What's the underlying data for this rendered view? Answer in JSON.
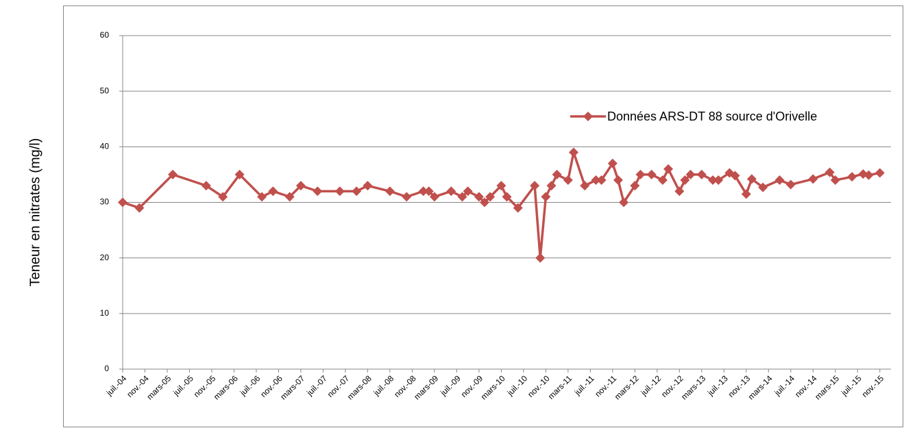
{
  "chart_data": {
    "type": "line",
    "y_label": "Teneur en nitrates (mg/l)",
    "x": [
      "2004-07",
      "2004-10",
      "2005-04",
      "2005-10",
      "2006-01",
      "2006-04",
      "2006-08",
      "2006-10",
      "2007-01",
      "2007-03",
      "2007-06",
      "2007-10",
      "2008-01",
      "2008-03",
      "2008-07",
      "2008-10",
      "2009-01",
      "2009-02",
      "2009-03",
      "2009-06",
      "2009-08",
      "2009-09",
      "2009-11",
      "2009-12",
      "2010-01",
      "2010-03",
      "2010-04",
      "2010-06",
      "2010-09",
      "2010-10",
      "2010-11",
      "2010-12",
      "2011-01",
      "2011-03",
      "2011-04",
      "2011-06",
      "2011-08",
      "2011-09",
      "2011-11",
      "2011-12",
      "2012-01",
      "2012-03",
      "2012-04",
      "2012-06",
      "2012-08",
      "2012-09",
      "2012-11",
      "2012-12",
      "2013-01",
      "2013-03",
      "2013-05",
      "2013-06",
      "2013-08",
      "2013-09",
      "2013-11",
      "2013-12",
      "2014-02",
      "2014-05",
      "2014-07",
      "2014-11",
      "2015-02",
      "2015-03",
      "2015-06",
      "2015-08",
      "2015-09",
      "2015-11"
    ],
    "series": [
      {
        "name": "Données ARS-DT 88 source d'Orivelle",
        "color": "#c0504d",
        "values": [
          30,
          29,
          35,
          33,
          31,
          35,
          31,
          32,
          31,
          33,
          32,
          32,
          32,
          33,
          32,
          31,
          32,
          32,
          31,
          32,
          31,
          32,
          31,
          30,
          31,
          33,
          31,
          29,
          33,
          20,
          31,
          33,
          35,
          34,
          39,
          33,
          34,
          34,
          37,
          34,
          30,
          33,
          35,
          35,
          34,
          36,
          32,
          34,
          35,
          35,
          34,
          34,
          35.3,
          34.8,
          31.5,
          34.2,
          32.7,
          34,
          33.2,
          34.2,
          35.4,
          34,
          34.6,
          35.1,
          34.9,
          35.3
        ]
      }
    ],
    "xlim": [
      "2004-07",
      "2016-01"
    ],
    "xticks": [
      {
        "value": "2004-07",
        "label": "juil.-04"
      },
      {
        "value": "2004-11",
        "label": "nov.-04"
      },
      {
        "value": "2005-03",
        "label": "mars-05"
      },
      {
        "value": "2005-07",
        "label": "juil.-05"
      },
      {
        "value": "2005-11",
        "label": "nov.-05"
      },
      {
        "value": "2006-03",
        "label": "mars-06"
      },
      {
        "value": "2006-07",
        "label": "juil.-06"
      },
      {
        "value": "2006-11",
        "label": "nov.-06"
      },
      {
        "value": "2007-03",
        "label": "mars-07"
      },
      {
        "value": "2007-07",
        "label": "juil.-07"
      },
      {
        "value": "2007-11",
        "label": "nov.-07"
      },
      {
        "value": "2008-03",
        "label": "mars-08"
      },
      {
        "value": "2008-07",
        "label": "juil.-08"
      },
      {
        "value": "2008-11",
        "label": "nov.-08"
      },
      {
        "value": "2009-03",
        "label": "mars-09"
      },
      {
        "value": "2009-07",
        "label": "juil.-09"
      },
      {
        "value": "2009-11",
        "label": "nov.-09"
      },
      {
        "value": "2010-03",
        "label": "mars-10"
      },
      {
        "value": "2010-07",
        "label": "juil.-10"
      },
      {
        "value": "2010-11",
        "label": "nov.-10"
      },
      {
        "value": "2011-03",
        "label": "mars-11"
      },
      {
        "value": "2011-07",
        "label": "juil.-11"
      },
      {
        "value": "2011-11",
        "label": "nov.-11"
      },
      {
        "value": "2012-03",
        "label": "mars-12"
      },
      {
        "value": "2012-07",
        "label": "juil.-12"
      },
      {
        "value": "2012-11",
        "label": "nov.-12"
      },
      {
        "value": "2013-03",
        "label": "mars-13"
      },
      {
        "value": "2013-07",
        "label": "juil.-13"
      },
      {
        "value": "2013-11",
        "label": "nov.-13"
      },
      {
        "value": "2014-03",
        "label": "mars-14"
      },
      {
        "value": "2014-07",
        "label": "juil.-14"
      },
      {
        "value": "2014-11",
        "label": "nov.-14"
      },
      {
        "value": "2015-03",
        "label": "mars-15"
      },
      {
        "value": "2015-07",
        "label": "juil.-15"
      },
      {
        "value": "2015-11",
        "label": "nov.-15"
      }
    ],
    "ylim": [
      0,
      60
    ],
    "yticks": [
      0,
      10,
      20,
      30,
      40,
      50,
      60
    ],
    "grid": true
  }
}
